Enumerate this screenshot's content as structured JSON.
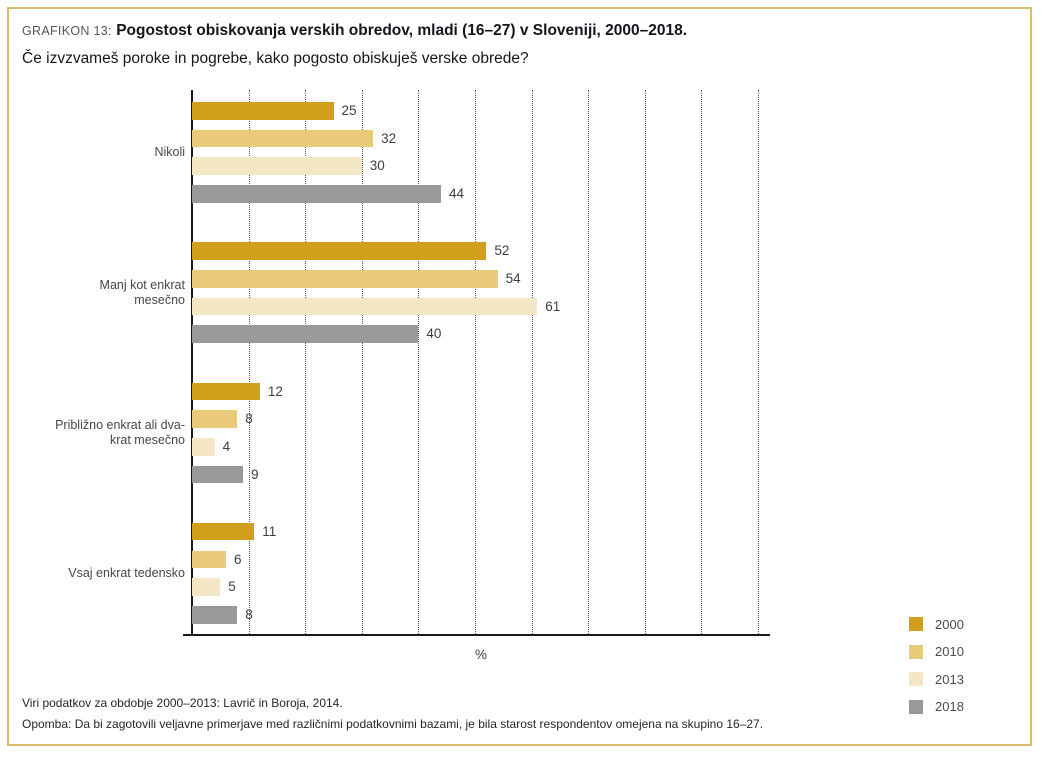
{
  "colors": {
    "frame_border": "#DCBB6C",
    "axis": "#1A1A1A",
    "gridline": "#55565A",
    "label_gray": "#55565A",
    "text_dark": "#15151C"
  },
  "header": {
    "label": "GRAFIKON 13:",
    "title": "Pogostost obiskovanja verskih obredov, mladi (16–27) v Sloveniji, 2000–2018.",
    "subtitle": "Če izvzvameš poroke in pogrebe, kako pogosto obiskuješ verske obrede?"
  },
  "chart_data": {
    "type": "bar",
    "orientation": "horizontal",
    "title": "Pogostost obiskovanja verskih obredov, mladi (16–27) v Sloveniji, 2000–2018.",
    "categories": [
      "Nikoli",
      "Manj kot enkrat mesečno",
      "Približno enkrat ali dvakrat mesečno",
      "Vsaj enkrat tedensko"
    ],
    "category_display_lines": [
      [
        "Nikoli"
      ],
      [
        "Manj kot enkrat",
        "mesečno"
      ],
      [
        "Približno enkrat ali dva-",
        "krat mesečno"
      ],
      [
        "Vsaj enkrat tedensko"
      ]
    ],
    "series": [
      {
        "name": "2000",
        "color": "#D0A01C",
        "values": [
          25,
          52,
          12,
          11
        ]
      },
      {
        "name": "2010",
        "color": "#E9CA7A",
        "values": [
          32,
          54,
          8,
          6
        ]
      },
      {
        "name": "2013",
        "color": "#F3E7C6",
        "values": [
          30,
          61,
          4,
          5
        ]
      },
      {
        "name": "2018",
        "color": "#99999B",
        "values": [
          44,
          40,
          9,
          8
        ]
      }
    ],
    "xlabel": "%",
    "xlim": [
      0,
      102
    ],
    "gridlines": [
      10,
      20,
      30,
      40,
      50,
      60,
      70,
      80,
      90,
      100
    ],
    "grid_style": "dotted-vertical",
    "legend_position": "bottom-right",
    "value_labels": true
  },
  "footer": {
    "source": "Viri podatkov za obdobje 2000–2013: Lavrič in Boroja, 2014.",
    "note": "Opomba: Da bi zagotovili veljavne primerjave med različnimi podatkovnimi bazami, je bila starost respondentov omejena na skupino 16–27."
  }
}
